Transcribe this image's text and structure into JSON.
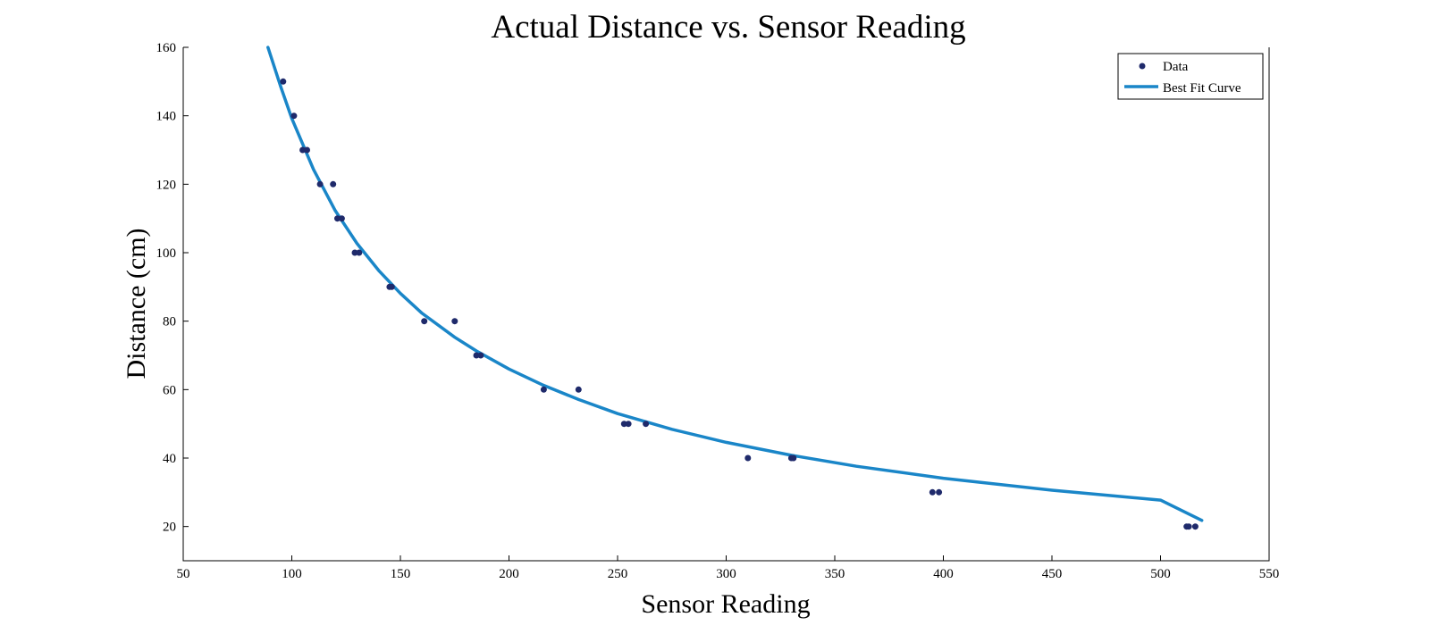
{
  "chart_data": {
    "type": "scatter",
    "title": "Actual Distance vs. Sensor Reading",
    "xlabel": "Sensor Reading",
    "ylabel": "Distance (cm)",
    "xlim": [
      50,
      550
    ],
    "ylim": [
      10,
      160
    ],
    "x_ticks": [
      50,
      100,
      150,
      200,
      250,
      300,
      350,
      400,
      450,
      500,
      550
    ],
    "y_ticks": [
      20,
      40,
      60,
      80,
      100,
      120,
      140,
      160
    ],
    "grid": false,
    "legend_position": "top-right",
    "colors": {
      "data": "#1f2a6b",
      "fit": "#1a86c8",
      "axes": "#000000"
    },
    "series": [
      {
        "name": "Data",
        "kind": "scatter",
        "x": [
          96,
          101,
          105,
          107,
          113,
          119,
          121,
          123,
          129,
          131,
          145,
          146,
          161,
          175,
          185,
          187,
          216,
          232,
          253,
          255,
          263,
          310,
          330,
          331,
          395,
          398,
          512,
          513,
          516
        ],
        "y": [
          150,
          140,
          130,
          130,
          120,
          120,
          110,
          110,
          100,
          100,
          90,
          90,
          80,
          80,
          70,
          70,
          60,
          60,
          50,
          50,
          50,
          40,
          40,
          40,
          30,
          30,
          20,
          20,
          20
        ]
      },
      {
        "name": "Best Fit Curve",
        "kind": "line",
        "x": [
          89,
          95,
          100,
          110,
          120,
          130,
          140,
          150,
          160,
          175,
          185,
          200,
          215,
          232,
          250,
          275,
          300,
          330,
          360,
          400,
          450,
          500,
          519
        ],
        "y": [
          160,
          148.3,
          139.2,
          124.3,
          112.3,
          102.7,
          94.8,
          88.1,
          82.3,
          75.3,
          71.3,
          66.0,
          61.5,
          57.1,
          53.0,
          48.4,
          44.6,
          40.8,
          37.6,
          34.1,
          30.6,
          27.7,
          21.8
        ]
      }
    ]
  }
}
